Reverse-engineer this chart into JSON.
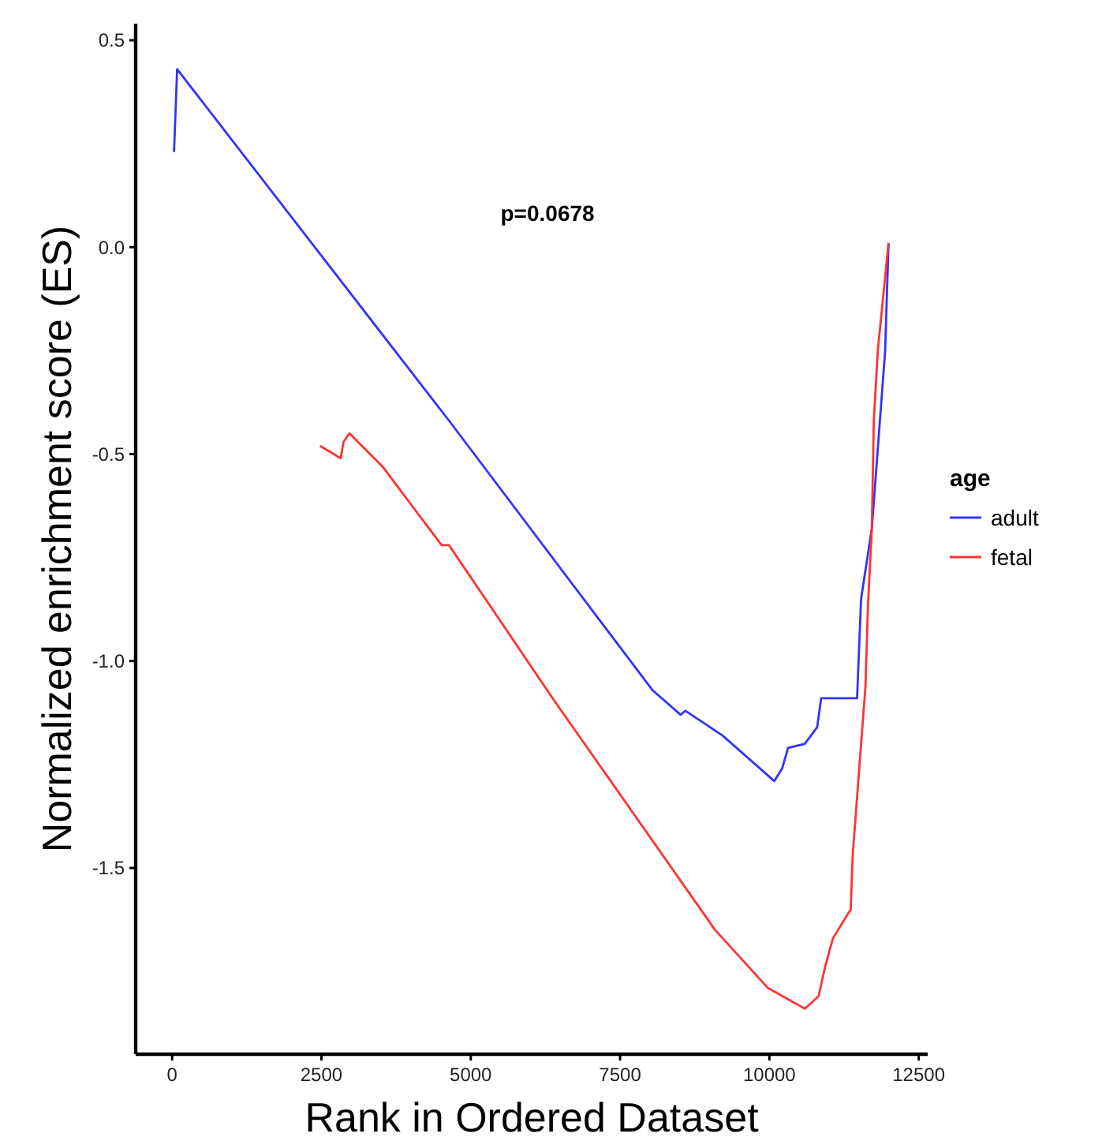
{
  "chart_data": {
    "type": "line",
    "xlabel": "Rank in Ordered Dataset",
    "ylabel": "Normalized enrichment score (ES)",
    "legend_title": "age",
    "legend": "right",
    "grid": false,
    "xlim": [
      -610,
      12650
    ],
    "xticks": [
      0,
      2500,
      5000,
      7500,
      10000,
      12500
    ],
    "ylim": [
      -1.95,
      0.54
    ],
    "yticks": [
      {
        "value": 0.5,
        "label": "0.5"
      },
      {
        "value": 0,
        "label": "0.0"
      },
      {
        "value": -0.5,
        "label": "-0.5"
      },
      {
        "value": -1,
        "label": "-1.0"
      },
      {
        "value": -1.5,
        "label": "-1.5"
      }
    ],
    "annotations": [
      "p=0.0678"
    ],
    "series": [
      {
        "name": "adult",
        "color": "#3333ff",
        "x": [
          32,
          84,
          4640,
          8040,
          8515,
          8590,
          9215,
          10082,
          10213,
          10312,
          10594,
          10800,
          10866,
          11468,
          11535,
          11715,
          11938,
          11995
        ],
        "values": [
          0.23,
          0.43,
          -0.42,
          -1.07,
          -1.13,
          -1.12,
          -1.18,
          -1.29,
          -1.26,
          -1.21,
          -1.2,
          -1.16,
          -1.09,
          -1.09,
          -0.85,
          -0.68,
          -0.25,
          0.01
        ]
      },
      {
        "name": "fetal",
        "color": "#ff3333",
        "x": [
          2475,
          2822,
          2871,
          2970,
          3522,
          4512,
          4636,
          6371,
          9092,
          9975,
          10594,
          10824,
          10931,
          11064,
          11361,
          11394,
          11609,
          11649,
          11715,
          11748,
          11815,
          11995
        ],
        "values": [
          -0.48,
          -0.51,
          -0.47,
          -0.45,
          -0.53,
          -0.72,
          -0.72,
          -1.09,
          -1.65,
          -1.79,
          -1.84,
          -1.81,
          -1.74,
          -1.67,
          -1.6,
          -1.47,
          -1.06,
          -0.87,
          -0.68,
          -0.42,
          -0.25,
          0.01
        ]
      }
    ]
  }
}
